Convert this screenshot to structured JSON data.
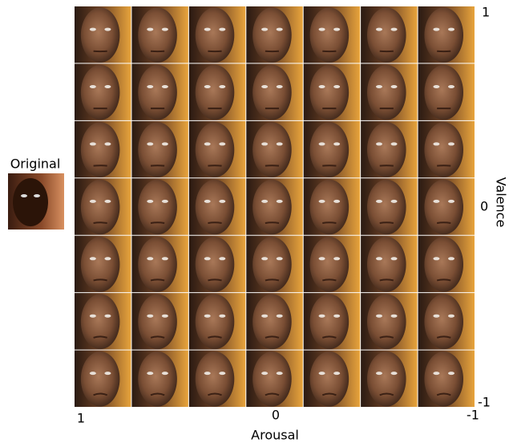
{
  "original_label": "Original",
  "x_axis": {
    "label": "Arousal",
    "ticks": [
      "1",
      "0",
      "-1"
    ]
  },
  "y_axis": {
    "label": "Valence",
    "ticks": [
      "1",
      "0",
      "-1"
    ]
  }
}
